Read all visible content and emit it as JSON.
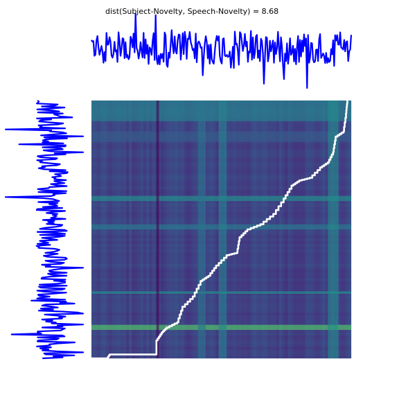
{
  "chart_data": {
    "type": "heatmap",
    "title": "dist(Subject-Novelty, Speech-Novelty) = 8.68",
    "subtitle": "",
    "xlabel": "",
    "ylabel": "",
    "grid": false,
    "legend": "none",
    "distance": 8.68,
    "series": [
      {
        "name": "Subject-Novelty",
        "placement": "top",
        "color": "#0000ff"
      },
      {
        "name": "Speech-Novelty",
        "placement": "left",
        "color": "#0000ff"
      }
    ],
    "heatmap": {
      "colormap": "viridis",
      "value_range": [
        0.15,
        0.55
      ],
      "row_bands": [
        {
          "from": 0.0,
          "to": 0.08,
          "level": 0.38
        },
        {
          "from": 0.12,
          "to": 0.16,
          "level": 0.3
        },
        {
          "from": 0.37,
          "to": 0.39,
          "level": 0.4
        },
        {
          "from": 0.48,
          "to": 0.5,
          "level": 0.36
        },
        {
          "from": 0.74,
          "to": 0.75,
          "level": 0.4
        },
        {
          "from": 0.87,
          "to": 0.89,
          "level": 0.52
        }
      ],
      "col_bands": [
        {
          "from": 0.25,
          "to": 0.26,
          "level": 0.15
        },
        {
          "from": 0.41,
          "to": 0.44,
          "level": 0.35
        },
        {
          "from": 0.49,
          "to": 0.52,
          "level": 0.38
        },
        {
          "from": 0.91,
          "to": 0.95,
          "level": 0.4
        }
      ]
    },
    "warping_path": {
      "color": "#ffffff",
      "points": [
        [
          0.0,
          1.0
        ],
        [
          0.06,
          1.0
        ],
        [
          0.07,
          0.985
        ],
        [
          0.11,
          0.985
        ],
        [
          0.25,
          0.985
        ],
        [
          0.25,
          0.93
        ],
        [
          0.27,
          0.9
        ],
        [
          0.29,
          0.88
        ],
        [
          0.33,
          0.86
        ],
        [
          0.35,
          0.8
        ],
        [
          0.39,
          0.76
        ],
        [
          0.42,
          0.7
        ],
        [
          0.45,
          0.68
        ],
        [
          0.48,
          0.64
        ],
        [
          0.52,
          0.6
        ],
        [
          0.56,
          0.59
        ],
        [
          0.57,
          0.53
        ],
        [
          0.6,
          0.5
        ],
        [
          0.65,
          0.48
        ],
        [
          0.7,
          0.44
        ],
        [
          0.74,
          0.38
        ],
        [
          0.77,
          0.33
        ],
        [
          0.8,
          0.31
        ],
        [
          0.84,
          0.3
        ],
        [
          0.88,
          0.26
        ],
        [
          0.91,
          0.24
        ],
        [
          0.93,
          0.2
        ],
        [
          0.94,
          0.14
        ],
        [
          0.97,
          0.12
        ],
        [
          0.98,
          0.05
        ],
        [
          0.985,
          0.0
        ]
      ]
    }
  }
}
